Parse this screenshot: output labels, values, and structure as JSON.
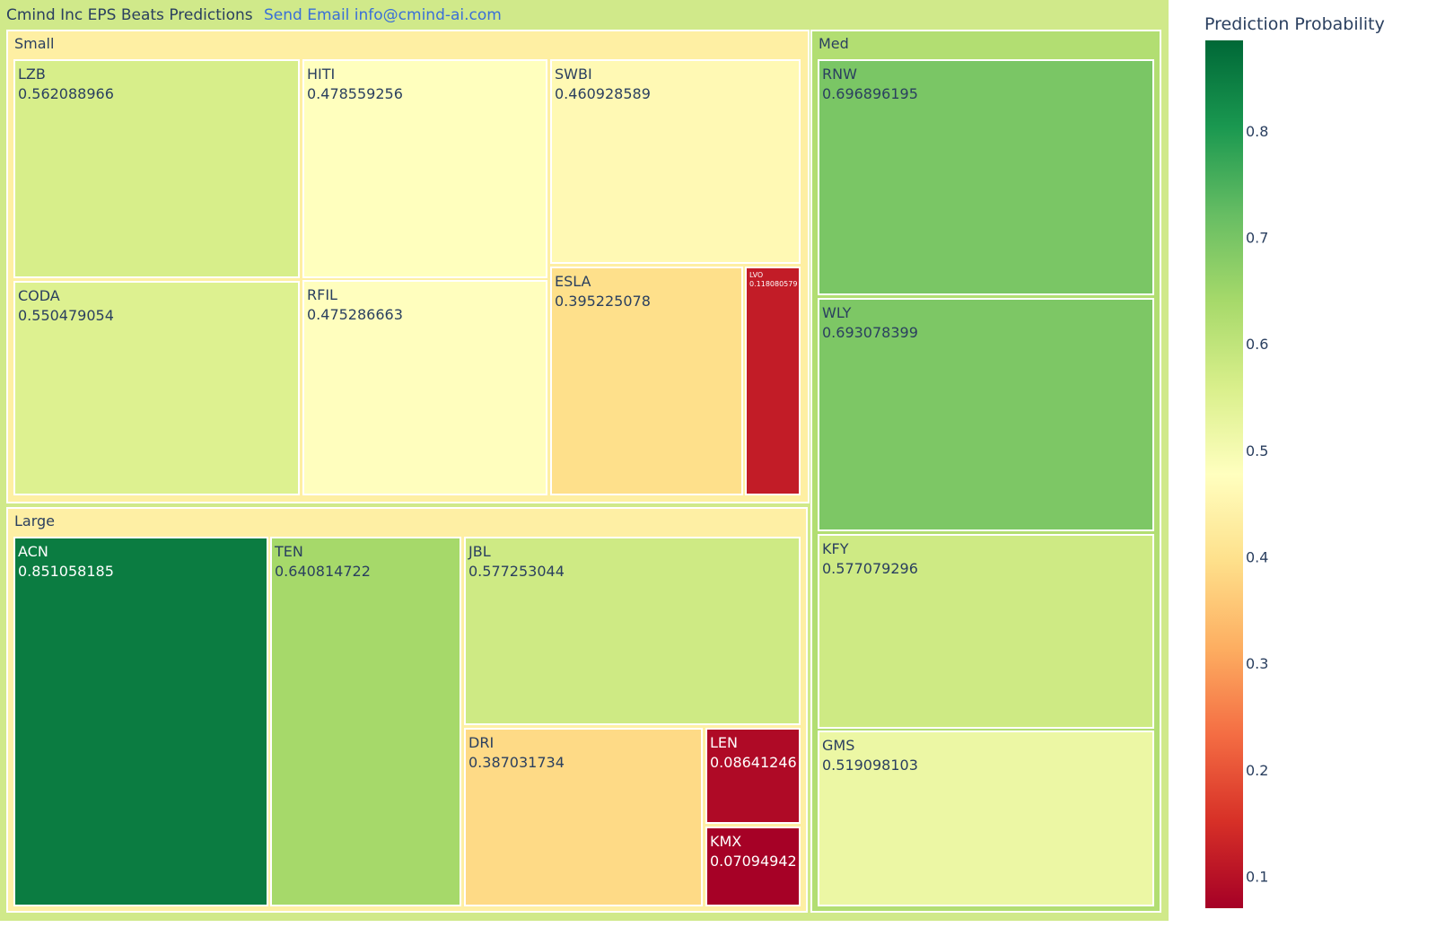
{
  "header": {
    "title": "Cmind Inc EPS Beats Predictions",
    "email_link": "Send Email info@cmind-ai.com"
  },
  "colors": {
    "link": "#3a6fd8",
    "root_bg": "#d0e98a"
  },
  "chart_data": {
    "type": "treemap",
    "colorbar_title": "Prediction Probability",
    "colorscale": "RdYlGn",
    "color_range": [
      0.07,
      0.885
    ],
    "colorbar_ticks": [
      0.8,
      0.7,
      0.6,
      0.5,
      0.4,
      0.3,
      0.2,
      0.1
    ],
    "groups": [
      {
        "label": "Small",
        "items": [
          {
            "label": "LZB",
            "value": "0.562088966"
          },
          {
            "label": "HITI",
            "value": "0.478559256"
          },
          {
            "label": "SWBI",
            "value": "0.460928589"
          },
          {
            "label": "CODA",
            "value": "0.550479054"
          },
          {
            "label": "RFIL",
            "value": "0.475286663"
          },
          {
            "label": "ESLA",
            "value": "0.395225078"
          },
          {
            "label": "LVO",
            "value": "0.118080579"
          }
        ]
      },
      {
        "label": "Med",
        "items": [
          {
            "label": "RNW",
            "value": "0.696896195"
          },
          {
            "label": "WLY",
            "value": "0.693078399"
          },
          {
            "label": "KFY",
            "value": "0.577079296"
          },
          {
            "label": "GMS",
            "value": "0.519098103"
          }
        ]
      },
      {
        "label": "Large",
        "items": [
          {
            "label": "ACN",
            "value": "0.851058185"
          },
          {
            "label": "TEN",
            "value": "0.640814722"
          },
          {
            "label": "JBL",
            "value": "0.577253044"
          },
          {
            "label": "DRI",
            "value": "0.387031734"
          },
          {
            "label": "LEN",
            "value": "0.08641246"
          },
          {
            "label": "KMX",
            "value": "0.07094942"
          }
        ]
      }
    ]
  }
}
